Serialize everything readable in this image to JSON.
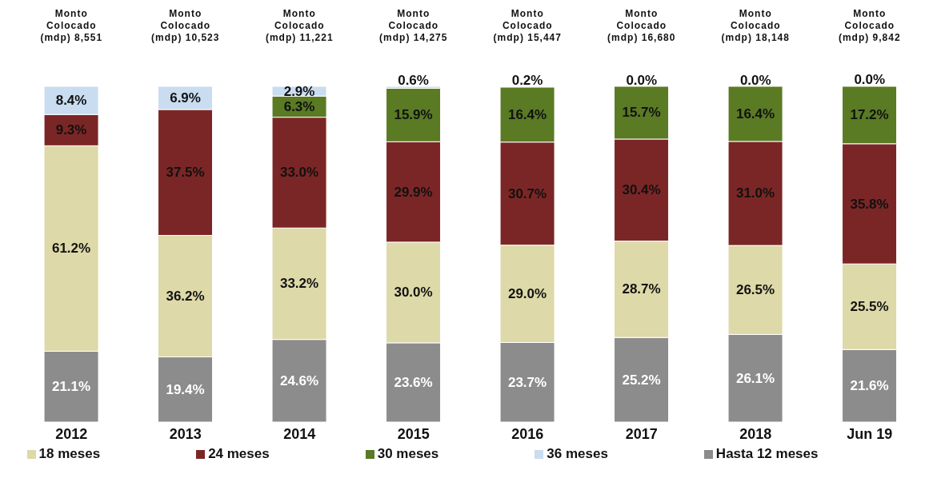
{
  "chart_data": {
    "type": "bar",
    "stacked": true,
    "categories": [
      "2012",
      "2013",
      "2014",
      "2015",
      "2016",
      "2017",
      "2018",
      "Jun 19"
    ],
    "ylim": [
      0,
      100
    ],
    "tick_labels": "x",
    "grid": false,
    "legend": "bottom",
    "series": [
      {
        "name": "Hasta 12 meses",
        "color": "#8c8c8c",
        "values": [
          21.1,
          19.4,
          24.6,
          23.6,
          23.7,
          25.2,
          26.1,
          21.6
        ],
        "value_labels": [
          "21.1%",
          "19.4%",
          "24.6%",
          "23.6%",
          "23.7%",
          "25.2%",
          "26.1%",
          "21.6%"
        ]
      },
      {
        "name": "18 meses",
        "color": "#ddd9a8",
        "values": [
          61.2,
          36.2,
          33.2,
          30.0,
          29.0,
          28.7,
          26.5,
          25.5
        ],
        "value_labels": [
          "61.2%",
          "36.2%",
          "33.2%",
          "30.0%",
          "29.0%",
          "28.7%",
          "26.5%",
          "25.5%"
        ]
      },
      {
        "name": "24 meses",
        "color": "#7b2626",
        "values": [
          9.3,
          37.5,
          33.0,
          29.9,
          30.7,
          30.4,
          31.0,
          35.8
        ],
        "value_labels": [
          "9.3%",
          "37.5%",
          "33.0%",
          "29.9%",
          "30.7%",
          "30.4%",
          "31.0%",
          "35.8%"
        ]
      },
      {
        "name": "30 meses",
        "color": "#5a7a24",
        "values": [
          null,
          null,
          6.3,
          15.9,
          16.4,
          15.7,
          16.4,
          17.2
        ],
        "value_labels": [
          null,
          null,
          "6.3%",
          "15.9%",
          "16.4%",
          "15.7%",
          "16.4%",
          "17.2%"
        ]
      },
      {
        "name": "36 meses",
        "color": "#c9dcf0",
        "values": [
          8.4,
          6.9,
          2.9,
          0.6,
          0.2,
          0.0,
          0.0,
          0.0
        ],
        "value_labels": [
          "8.4%",
          "6.9%",
          "2.9%",
          "0.6%",
          "0.2%",
          "0.0%",
          "0.0%",
          "0.0%"
        ]
      }
    ],
    "annotations": [
      "Monto Colocado (mdp) 8,551",
      "Monto Colocado (mdp) 10,523",
      "Monto Colocado (mdp) 11,221",
      "Monto Colocado (mdp) 14,275",
      "Monto Colocado (mdp) 15,447",
      "Monto Colocado (mdp) 16,680",
      "Monto Colocado (mdp) 18,148",
      "Monto Colocado (mdp) 9,842"
    ]
  }
}
